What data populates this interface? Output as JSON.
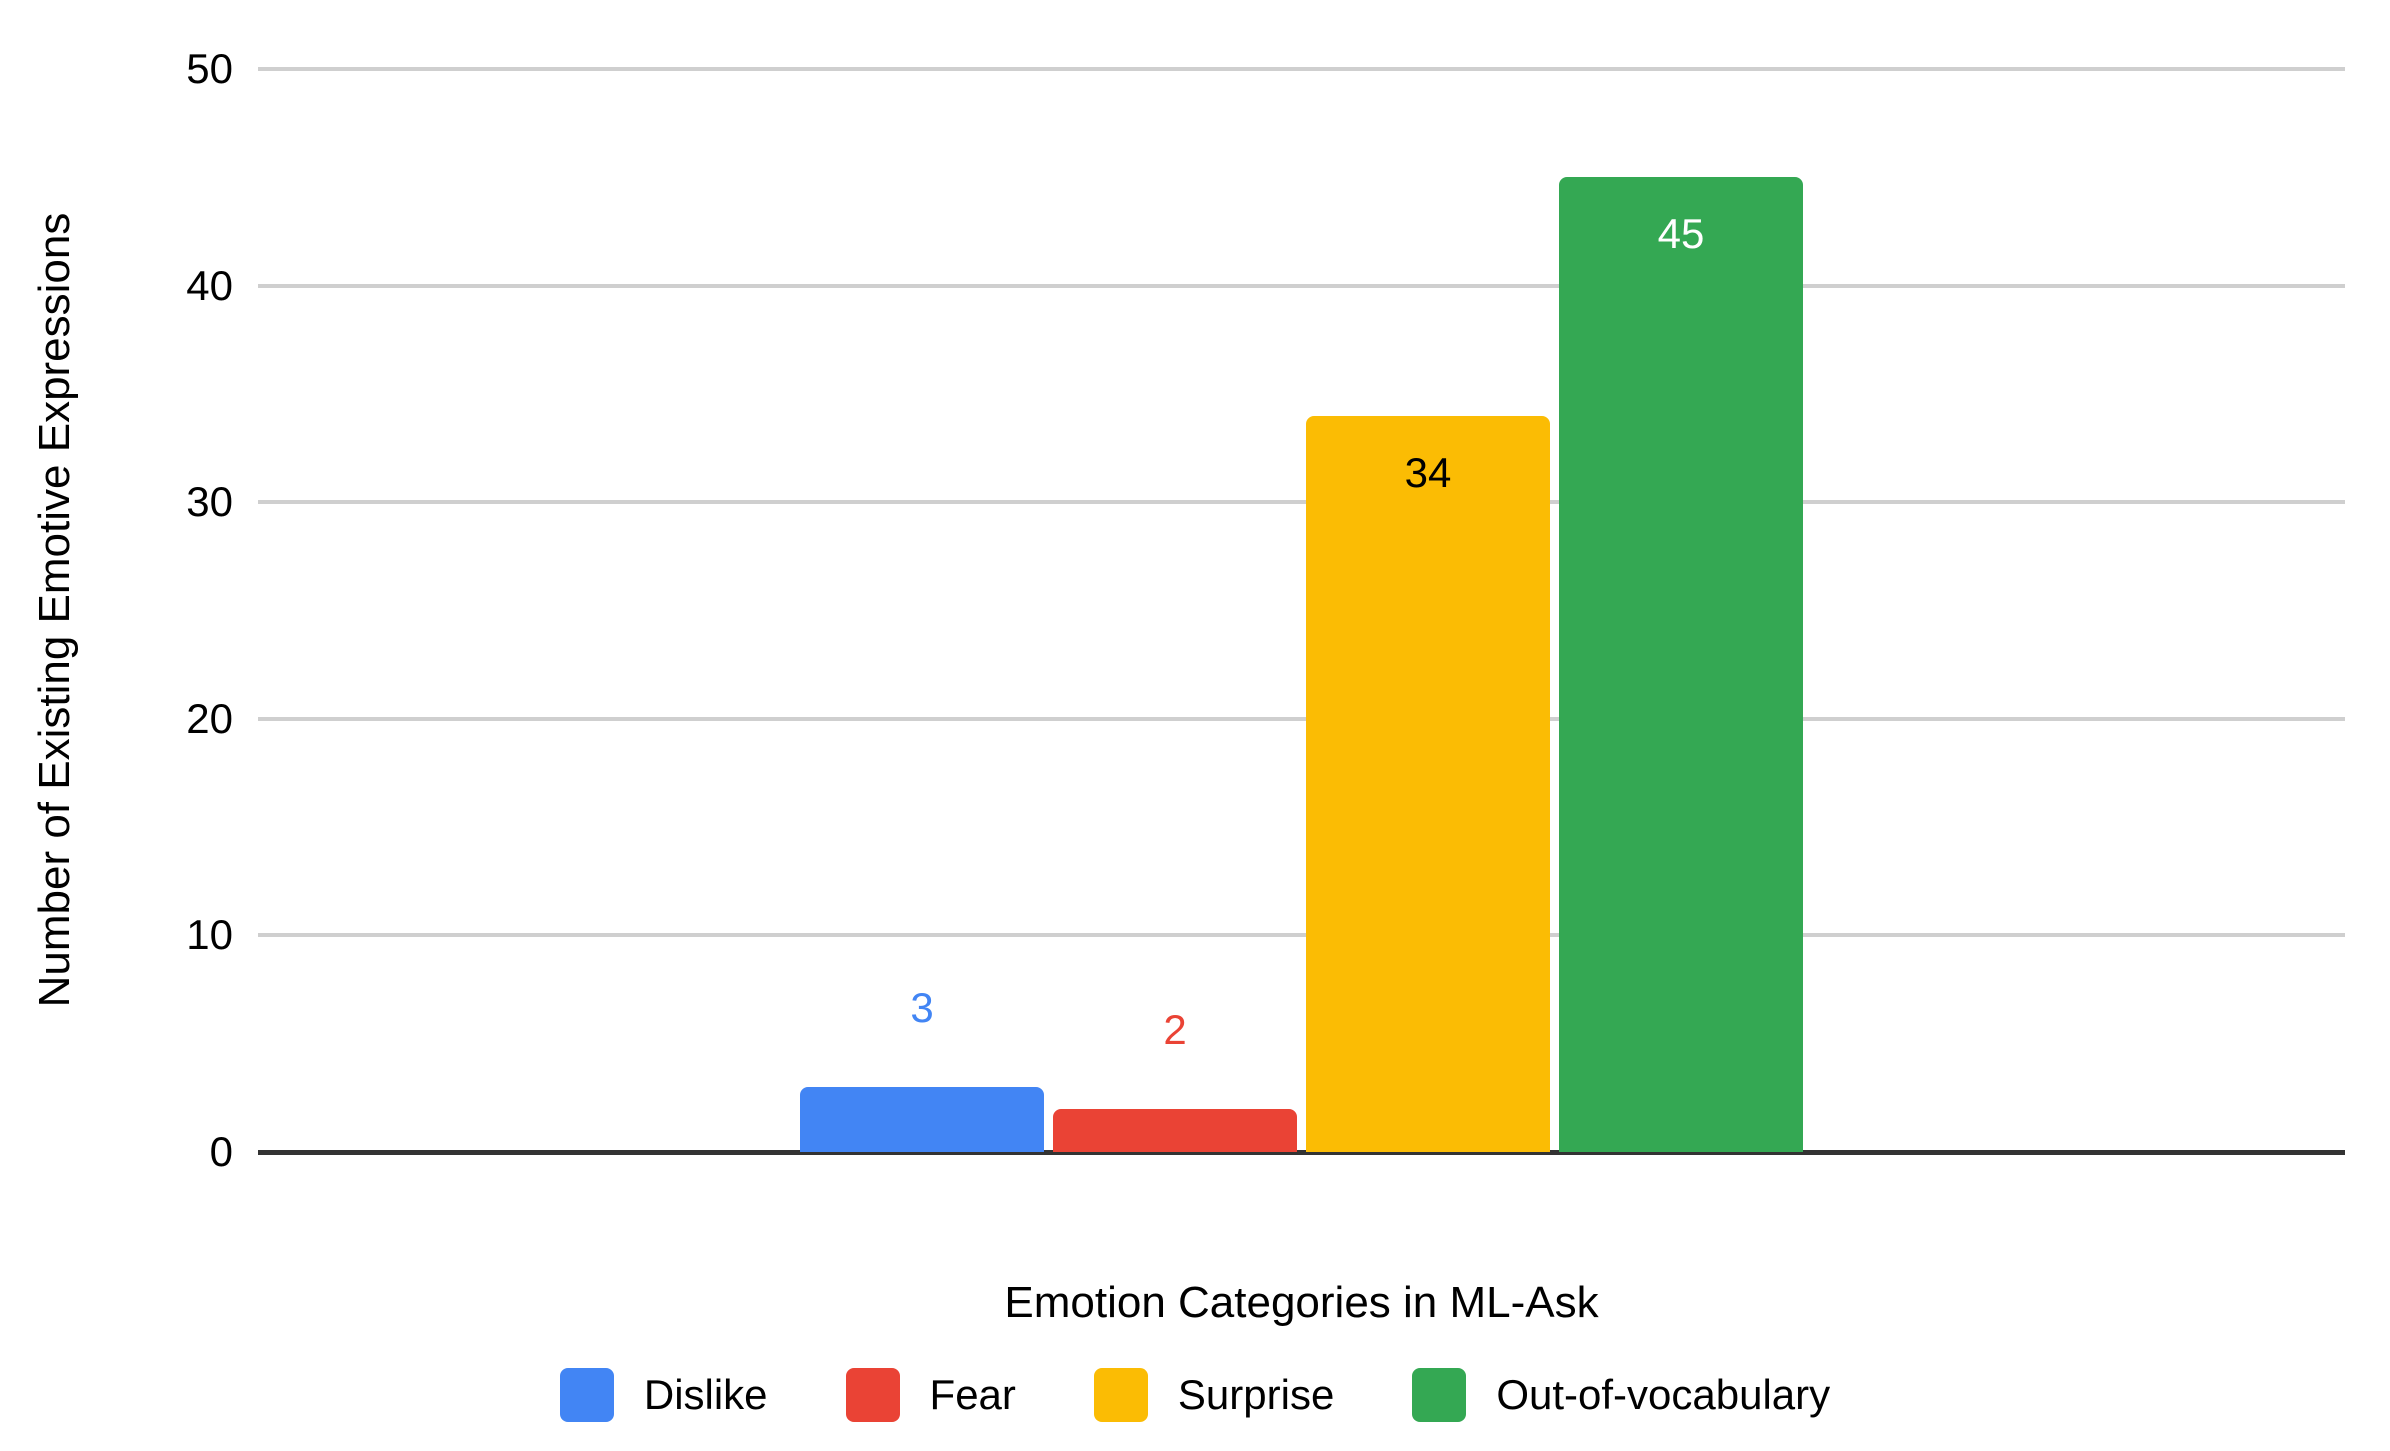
{
  "chart_data": {
    "type": "bar",
    "title": "",
    "xlabel": "Emotion Categories in ML-Ask",
    "ylabel": "Number of Existing Emotive Expressions",
    "ylim": [
      0,
      50
    ],
    "yticks": [
      0,
      10,
      20,
      30,
      40,
      50
    ],
    "grid": true,
    "legend_position": "bottom",
    "categories": [
      "Dislike",
      "Fear",
      "Surprise",
      "Out-of-vocabulary"
    ],
    "series": [
      {
        "name": "Dislike",
        "value": 3,
        "color": "#4285F4",
        "data_label": "3",
        "label_color": "#4285F4",
        "label_placement": "outside"
      },
      {
        "name": "Fear",
        "value": 2,
        "color": "#EA4335",
        "data_label": "2",
        "label_color": "#EA4335",
        "label_placement": "outside"
      },
      {
        "name": "Surprise",
        "value": 34,
        "color": "#FBBC04",
        "data_label": "34",
        "label_color": "#000000",
        "label_placement": "inside"
      },
      {
        "name": "Out-of-vocabulary",
        "value": 45,
        "color": "#34A853",
        "data_label": "45",
        "label_color": "#FFFFFF",
        "label_placement": "inside"
      }
    ],
    "axis_colors": {
      "gridline": "#cfcfcf",
      "baseline": "#333333",
      "text": "#000000"
    }
  }
}
